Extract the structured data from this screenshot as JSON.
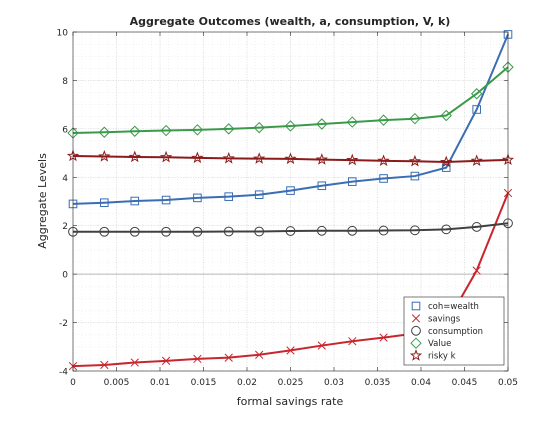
{
  "chart_data": {
    "type": "line",
    "title": "Aggregate Outcomes (wealth, a, consumption, V, k)",
    "xlabel": "formal savings rate",
    "ylabel": "Aggregate Levels",
    "xlim": [
      0,
      0.05
    ],
    "ylim": [
      -4,
      10
    ],
    "xticks": [
      0,
      0.005,
      0.01,
      0.015,
      0.02,
      0.025,
      0.03,
      0.035,
      0.04,
      0.045,
      0.05
    ],
    "yticks": [
      -4,
      -2,
      0,
      2,
      4,
      6,
      8,
      10
    ],
    "xtick_labels": [
      "0",
      "0.005",
      "0.01",
      "0.015",
      "0.02",
      "0.025",
      "0.03",
      "0.035",
      "0.04",
      "0.045",
      "0.05"
    ],
    "ytick_labels": [
      "-4",
      "-2",
      "0",
      "2",
      "4",
      "6",
      "8",
      "10"
    ],
    "grid": "major and minor, dotted",
    "zero_line": true,
    "legend_position": "bottom-right",
    "x": [
      0,
      0.0036,
      0.0071,
      0.0107,
      0.0143,
      0.0179,
      0.0214,
      0.025,
      0.0286,
      0.0321,
      0.0357,
      0.0393,
      0.0429,
      0.0464,
      0.05
    ],
    "series": [
      {
        "name": "coh=wealth",
        "marker": "square",
        "color": "#3a6db3",
        "values": [
          2.9,
          2.95,
          3.02,
          3.06,
          3.15,
          3.2,
          3.28,
          3.45,
          3.65,
          3.82,
          3.95,
          4.05,
          4.4,
          6.8,
          9.9
        ]
      },
      {
        "name": "savings",
        "marker": "x",
        "color": "#c8262e",
        "values": [
          -3.8,
          -3.75,
          -3.65,
          -3.58,
          -3.5,
          -3.45,
          -3.33,
          -3.15,
          -2.95,
          -2.77,
          -2.62,
          -2.45,
          -2.05,
          0.15,
          3.35
        ]
      },
      {
        "name": "consumption",
        "marker": "circle",
        "color": "#404040",
        "values": [
          1.75,
          1.75,
          1.75,
          1.75,
          1.75,
          1.76,
          1.76,
          1.78,
          1.79,
          1.79,
          1.8,
          1.81,
          1.85,
          1.95,
          2.1
        ]
      },
      {
        "name": "Value",
        "marker": "diamond",
        "color": "#3a9a4a",
        "values": [
          5.83,
          5.86,
          5.9,
          5.93,
          5.96,
          6.0,
          6.05,
          6.12,
          6.2,
          6.28,
          6.36,
          6.42,
          6.55,
          7.45,
          8.55
        ]
      },
      {
        "name": "risky k",
        "marker": "star",
        "color": "#8b1a1a",
        "values": [
          4.88,
          4.86,
          4.84,
          4.83,
          4.8,
          4.78,
          4.77,
          4.76,
          4.73,
          4.71,
          4.68,
          4.66,
          4.63,
          4.68,
          4.72
        ]
      }
    ]
  }
}
